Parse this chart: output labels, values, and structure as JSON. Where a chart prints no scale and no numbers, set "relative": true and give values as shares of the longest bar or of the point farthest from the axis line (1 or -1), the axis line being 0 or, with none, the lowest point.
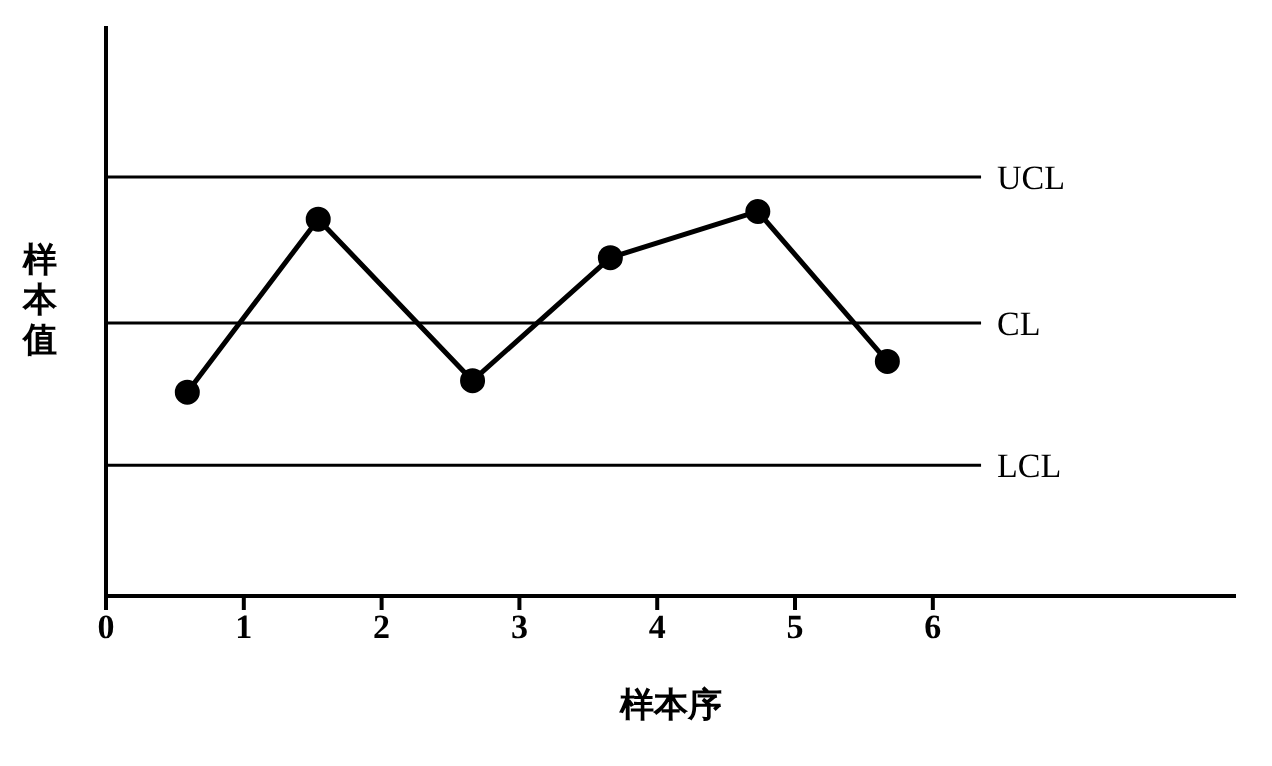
{
  "chart_data": {
    "type": "line",
    "relative": true,
    "xlabel": "样本序",
    "ylabel": "样本值",
    "xlim": [
      0,
      8.2
    ],
    "xticks": [
      0,
      1,
      2,
      3,
      4,
      5,
      6
    ],
    "series": [
      {
        "x": [
          0.59,
          1.54,
          2.66,
          3.66,
          4.73,
          5.67
        ],
        "values": [
          0.53,
          0.98,
          0.56,
          0.88,
          1,
          0.61
        ],
        "color": "#000000"
      }
    ],
    "ref_lines": [
      {
        "axis": "y",
        "value": 1.09,
        "label": "UCL",
        "color": "#000000"
      },
      {
        "axis": "y",
        "value": 0.71,
        "label": "CL",
        "color": "#000000"
      },
      {
        "axis": "y",
        "value": 0.34,
        "label": "LCL",
        "color": "#000000"
      }
    ],
    "marker": "circle",
    "line_style": "solid",
    "grid": false,
    "legend": false
  }
}
